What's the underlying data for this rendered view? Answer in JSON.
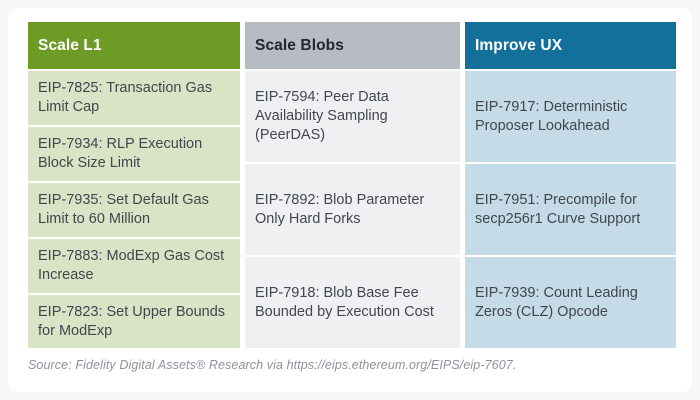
{
  "columns": [
    {
      "id": "scale-l1",
      "header": "Scale L1",
      "header_bg": "#6d9b25",
      "header_text_color": "#ffffff",
      "cell_bg": "#d9e3c6",
      "items": [
        "EIP-7825: Transaction Gas Limit Cap",
        "EIP-7934: RLP Execution Block Size Limit",
        "EIP-7935: Set Default Gas Limit to 60 Million",
        "EIP-7883: ModExp Gas Cost Increase",
        "EIP-7823: Set Upper Bounds for ModExp"
      ]
    },
    {
      "id": "scale-blobs",
      "header": "Scale Blobs",
      "header_bg": "#b7bcc3",
      "header_text_color": "#22272e",
      "cell_bg": "#f0f0f2",
      "items": [
        "EIP-7594: Peer Data Availability Sampling (PeerDAS)",
        "EIP-7892: Blob Parameter Only Hard Forks",
        "EIP-7918: Blob Base Fee Bounded by Execution Cost"
      ]
    },
    {
      "id": "improve-ux",
      "header": "Improve UX",
      "header_bg": "#13709a",
      "header_text_color": "#ffffff",
      "cell_bg": "#c5dce8",
      "items": [
        "EIP-7917: Deterministic Proposer Lookahead",
        "EIP-7951: Precompile for secp256r1 Curve Support",
        "EIP-7939: Count Leading Zeros (CLZ) Opcode"
      ]
    }
  ],
  "source": "Source: Fidelity Digital Assets® Research via https://eips.ethereum.org/EIPS/eip-7607.",
  "colors": {
    "page_background": "#f8f5f5",
    "card_background": "#ffffff",
    "cell_text": "#40474d",
    "source_text": "#8d9299"
  }
}
